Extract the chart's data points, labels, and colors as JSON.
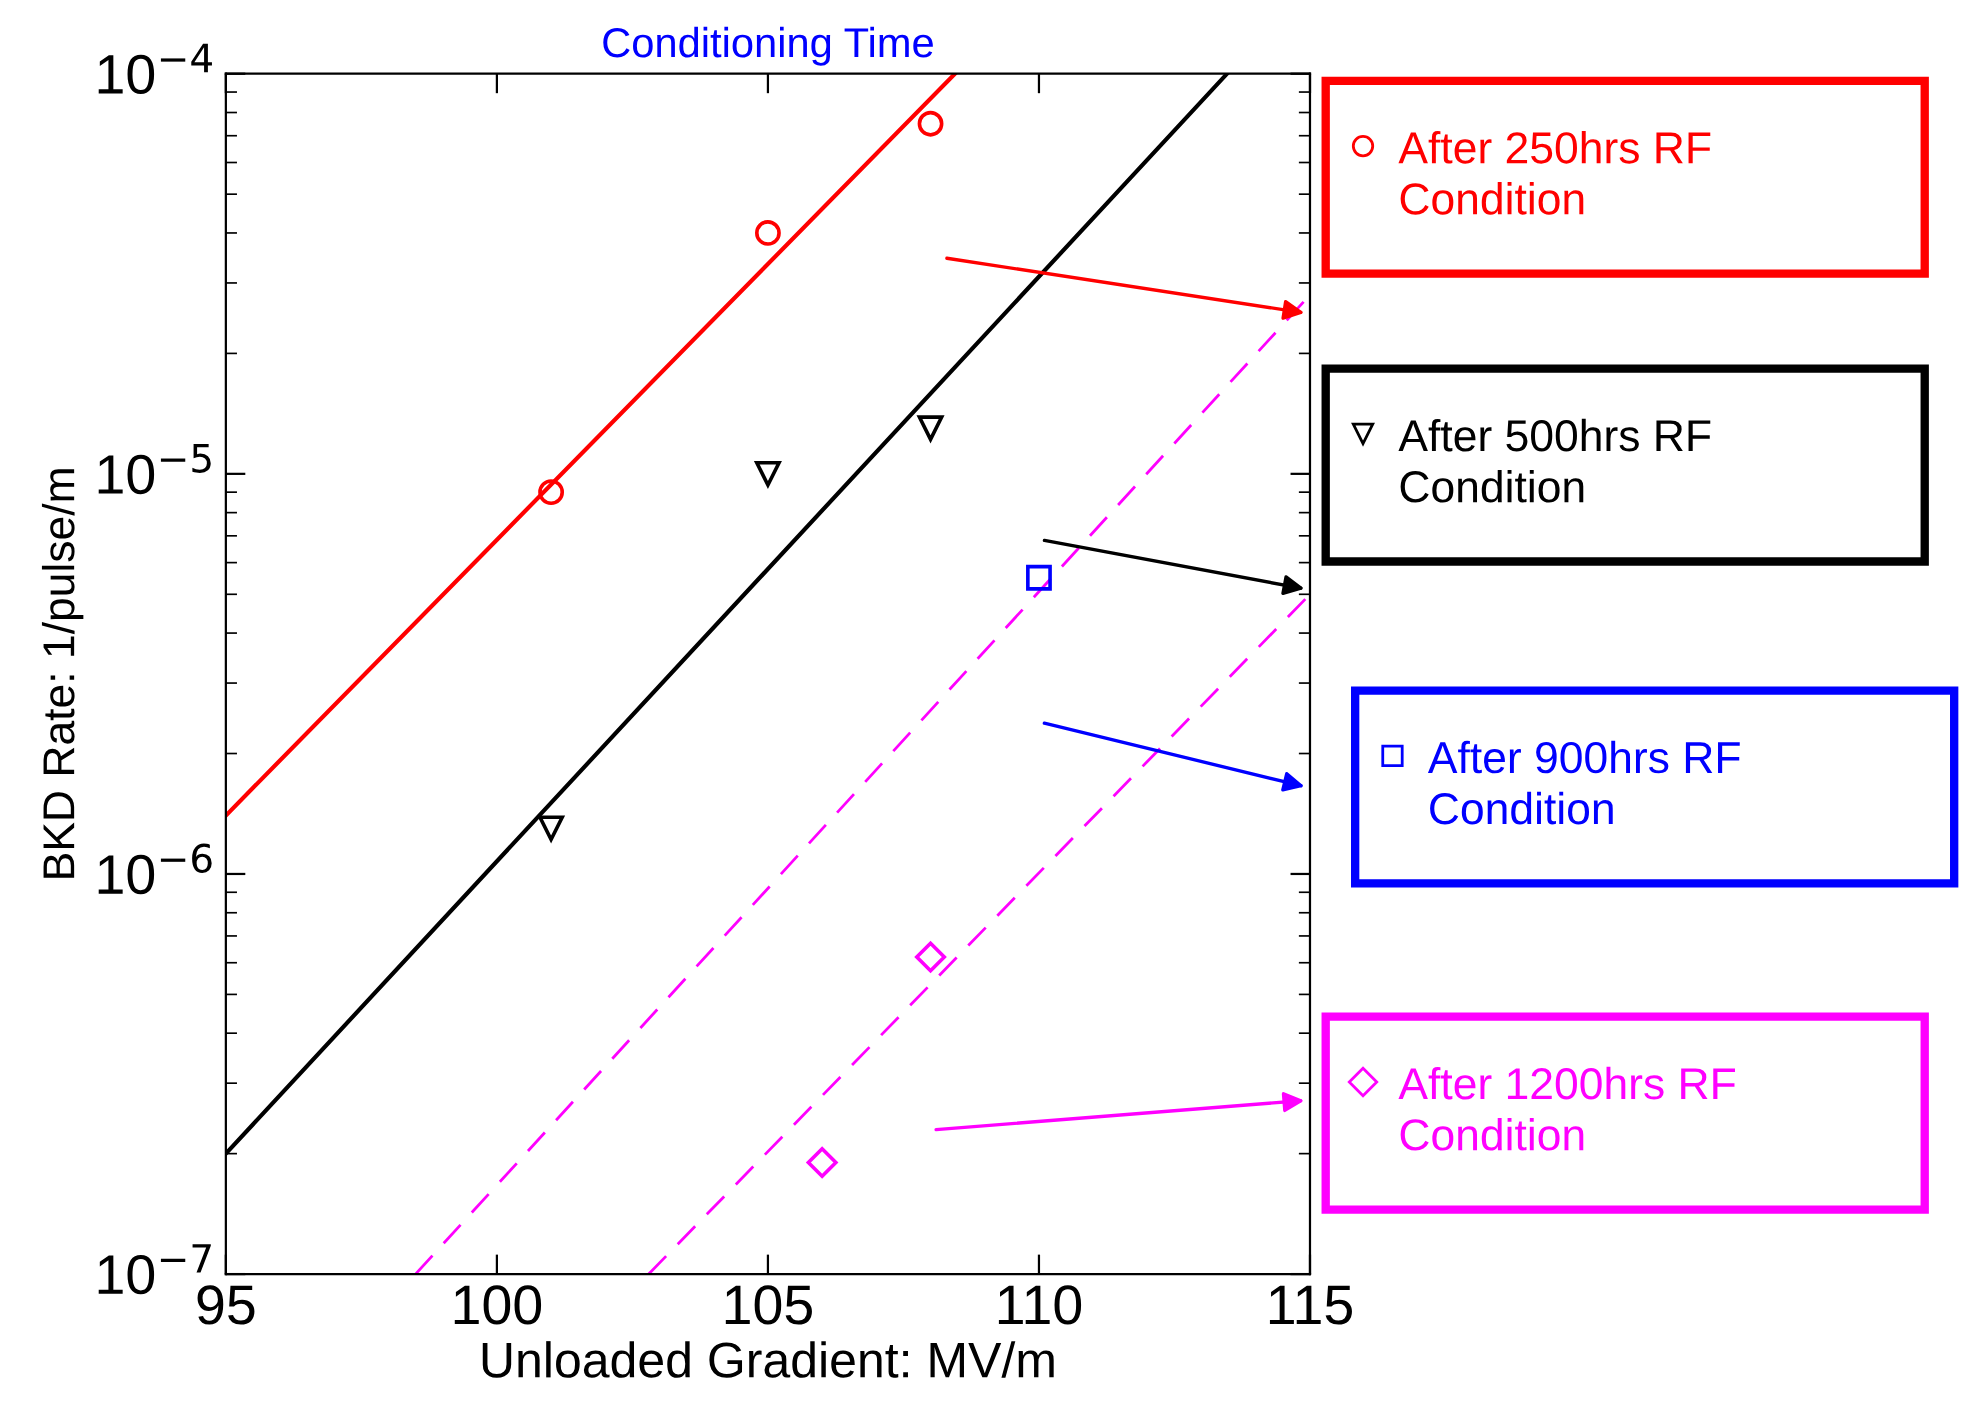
{
  "chart_data": {
    "type": "scatter",
    "title": "Conditioning Time",
    "xlabel": "Unloaded Gradient: MV/m",
    "ylabel": "BKD Rate: 1/pulse/m",
    "log": "y",
    "legend": "right",
    "xlim": [
      95,
      115
    ],
    "ylim": [
      1e-07,
      0.0001
    ],
    "xticks": [
      95,
      100,
      105,
      110,
      115
    ],
    "yticks": [
      {
        "value": 1e-07,
        "label": "10$^{−7}$"
      },
      {
        "value": 1e-06,
        "label": "10$^{−6}$"
      },
      {
        "value": 1e-05,
        "label": "10$^{−5}$"
      },
      {
        "value": 0.0001,
        "label": "10$^{−4}$"
      }
    ],
    "series": [
      {
        "name": "After 250hrs RF Condition",
        "marker": "circle",
        "color": "#ff0000",
        "x": [
          101,
          105,
          108
        ],
        "values": [
          9e-06,
          4e-05,
          7.5e-05
        ]
      },
      {
        "name": "After 500hrs RF Condition",
        "marker": "triangle",
        "color": "#000000",
        "x": [
          101,
          105,
          108
        ],
        "values": [
          1.3e-06,
          1e-05,
          1.3e-05
        ]
      },
      {
        "name": "After 900hrs RF Condition",
        "marker": "square",
        "color": "#0000ff",
        "x": [
          110
        ],
        "values": [
          5.5e-06
        ]
      },
      {
        "name": "After 1200hrs RF Condition",
        "marker": "diamond",
        "color": "#ff00ff",
        "x": [
          106,
          108
        ],
        "values": [
          1.9e-07,
          6.2e-07
        ]
      },
      {
        "type": "line",
        "line_style": "solid",
        "color": "#ff0000",
        "x": [
          95,
          108.45
        ],
        "values": [
          1.4e-06,
          0.0001
        ]
      },
      {
        "type": "line",
        "line_style": "solid",
        "color": "#000000",
        "x": [
          95,
          113.47
        ],
        "values": [
          2e-07,
          0.0001
        ]
      },
      {
        "type": "line",
        "line_style": "dashed",
        "color": "#ff00ff",
        "x": [
          98.5,
          115
        ],
        "values": [
          1e-07,
          2.8e-05
        ]
      },
      {
        "type": "line",
        "line_style": "dashed",
        "color": "#ff00ff",
        "x": [
          102.8,
          115
        ],
        "values": [
          1e-07,
          5e-06
        ]
      }
    ]
  }
}
